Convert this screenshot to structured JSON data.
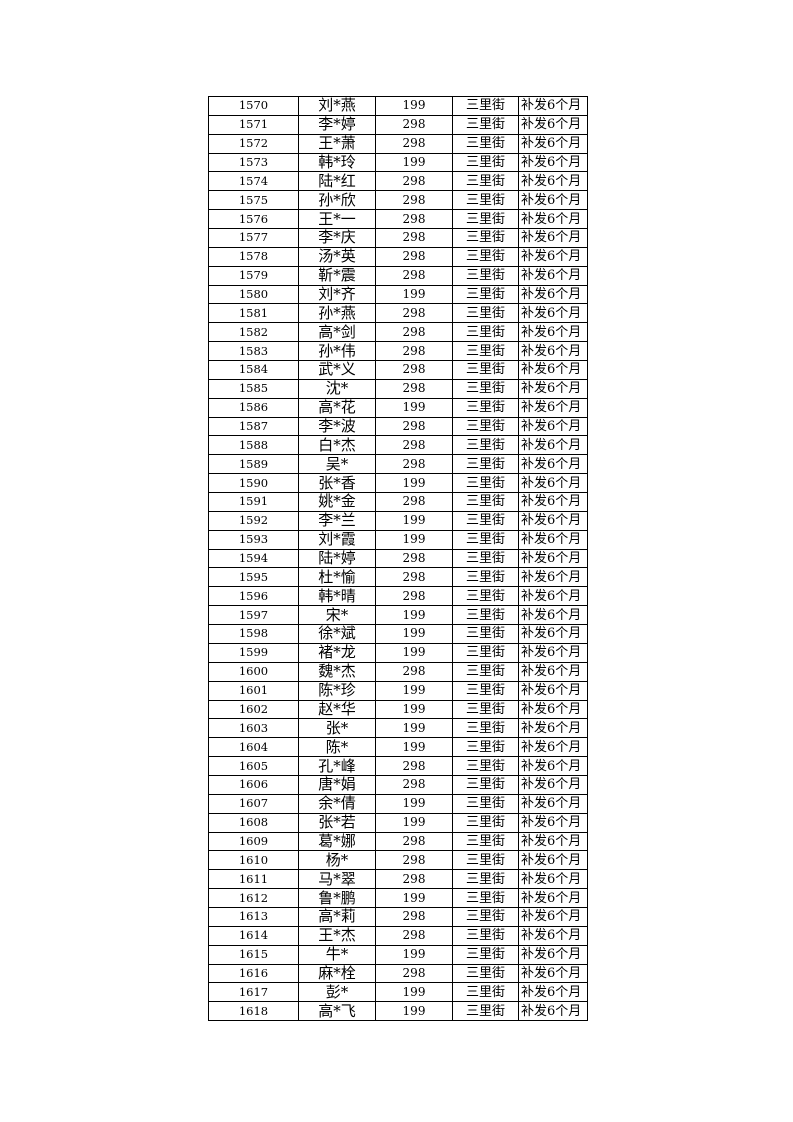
{
  "table": {
    "rows": [
      [
        "1570",
        "刘*燕",
        "199",
        "三里街",
        "补发6个月"
      ],
      [
        "1571",
        "李*婷",
        "298",
        "三里街",
        "补发6个月"
      ],
      [
        "1572",
        "王*萧",
        "298",
        "三里街",
        "补发6个月"
      ],
      [
        "1573",
        "韩*玲",
        "199",
        "三里街",
        "补发6个月"
      ],
      [
        "1574",
        "陆*红",
        "298",
        "三里街",
        "补发6个月"
      ],
      [
        "1575",
        "孙*欣",
        "298",
        "三里街",
        "补发6个月"
      ],
      [
        "1576",
        "王*一",
        "298",
        "三里街",
        "补发6个月"
      ],
      [
        "1577",
        "李*庆",
        "298",
        "三里街",
        "补发6个月"
      ],
      [
        "1578",
        "汤*英",
        "298",
        "三里街",
        "补发6个月"
      ],
      [
        "1579",
        "靳*震",
        "298",
        "三里街",
        "补发6个月"
      ],
      [
        "1580",
        "刘*齐",
        "199",
        "三里街",
        "补发6个月"
      ],
      [
        "1581",
        "孙*燕",
        "298",
        "三里街",
        "补发6个月"
      ],
      [
        "1582",
        "高*剑",
        "298",
        "三里街",
        "补发6个月"
      ],
      [
        "1583",
        "孙*伟",
        "298",
        "三里街",
        "补发6个月"
      ],
      [
        "1584",
        "武*义",
        "298",
        "三里街",
        "补发6个月"
      ],
      [
        "1585",
        "沈*",
        "298",
        "三里街",
        "补发6个月"
      ],
      [
        "1586",
        "高*花",
        "199",
        "三里街",
        "补发6个月"
      ],
      [
        "1587",
        "李*波",
        "298",
        "三里街",
        "补发6个月"
      ],
      [
        "1588",
        "白*杰",
        "298",
        "三里街",
        "补发6个月"
      ],
      [
        "1589",
        "吴*",
        "298",
        "三里街",
        "补发6个月"
      ],
      [
        "1590",
        "张*香",
        "199",
        "三里街",
        "补发6个月"
      ],
      [
        "1591",
        "姚*金",
        "298",
        "三里街",
        "补发6个月"
      ],
      [
        "1592",
        "李*兰",
        "199",
        "三里街",
        "补发6个月"
      ],
      [
        "1593",
        "刘*霞",
        "199",
        "三里街",
        "补发6个月"
      ],
      [
        "1594",
        "陆*婷",
        "298",
        "三里街",
        "补发6个月"
      ],
      [
        "1595",
        "杜*愉",
        "298",
        "三里街",
        "补发6个月"
      ],
      [
        "1596",
        "韩*晴",
        "298",
        "三里街",
        "补发6个月"
      ],
      [
        "1597",
        "宋*",
        "199",
        "三里街",
        "补发6个月"
      ],
      [
        "1598",
        "徐*斌",
        "199",
        "三里街",
        "补发6个月"
      ],
      [
        "1599",
        "褚*龙",
        "199",
        "三里街",
        "补发6个月"
      ],
      [
        "1600",
        "魏*杰",
        "298",
        "三里街",
        "补发6个月"
      ],
      [
        "1601",
        "陈*珍",
        "199",
        "三里街",
        "补发6个月"
      ],
      [
        "1602",
        "赵*华",
        "199",
        "三里街",
        "补发6个月"
      ],
      [
        "1603",
        "张*",
        "199",
        "三里街",
        "补发6个月"
      ],
      [
        "1604",
        "陈*",
        "199",
        "三里街",
        "补发6个月"
      ],
      [
        "1605",
        "孔*峰",
        "298",
        "三里街",
        "补发6个月"
      ],
      [
        "1606",
        "唐*娟",
        "298",
        "三里街",
        "补发6个月"
      ],
      [
        "1607",
        "余*倩",
        "199",
        "三里街",
        "补发6个月"
      ],
      [
        "1608",
        "张*若",
        "199",
        "三里街",
        "补发6个月"
      ],
      [
        "1609",
        "葛*娜",
        "298",
        "三里街",
        "补发6个月"
      ],
      [
        "1610",
        "杨*",
        "298",
        "三里街",
        "补发6个月"
      ],
      [
        "1611",
        "马*翠",
        "298",
        "三里街",
        "补发6个月"
      ],
      [
        "1612",
        "鲁*鹏",
        "199",
        "三里街",
        "补发6个月"
      ],
      [
        "1613",
        "高*莉",
        "298",
        "三里街",
        "补发6个月"
      ],
      [
        "1614",
        "王*杰",
        "298",
        "三里街",
        "补发6个月"
      ],
      [
        "1615",
        "牛*",
        "199",
        "三里街",
        "补发6个月"
      ],
      [
        "1616",
        "麻*栓",
        "298",
        "三里街",
        "补发6个月"
      ],
      [
        "1617",
        "彭*",
        "199",
        "三里街",
        "补发6个月"
      ],
      [
        "1618",
        "高*飞",
        "199",
        "三里街",
        "补发6个月"
      ]
    ]
  }
}
